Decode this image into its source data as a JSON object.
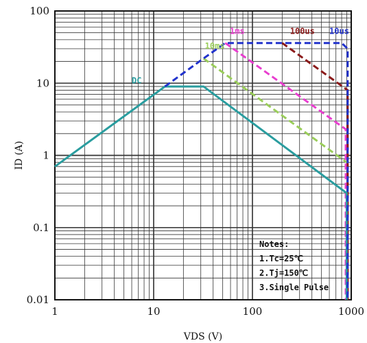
{
  "chart_data": {
    "type": "line",
    "title": "",
    "xlabel": "VDS (V)",
    "ylabel": "ID (A)",
    "xscale": "log",
    "yscale": "log",
    "xlim": [
      1,
      1000
    ],
    "ylim": [
      0.01,
      100
    ],
    "grid": true,
    "x_tick_labels": [
      "1",
      "10",
      "100",
      "1000"
    ],
    "y_tick_labels": [
      "0.01",
      "0.1",
      "1",
      "10",
      "100"
    ],
    "series": [
      {
        "name": "DC",
        "color": "#2a9d9f",
        "dashed": false,
        "points": [
          [
            1,
            0.7
          ],
          [
            13,
            9
          ],
          [
            32,
            9
          ],
          [
            900,
            0.3
          ],
          [
            900,
            0.01
          ]
        ]
      },
      {
        "name": "10ms",
        "color": "#9acd5a",
        "dashed": true,
        "points": [
          [
            32,
            22
          ],
          [
            900,
            0.8
          ]
        ]
      },
      {
        "name": "1ms",
        "color": "#e83ecf",
        "dashed": true,
        "points": [
          [
            53,
            36
          ],
          [
            880,
            2.3
          ],
          [
            880,
            0.01
          ]
        ]
      },
      {
        "name": "100us",
        "color": "#8b1a1a",
        "dashed": true,
        "points": [
          [
            200,
            36
          ],
          [
            920,
            8
          ],
          [
            920,
            0.01
          ]
        ]
      },
      {
        "name": "10us",
        "color": "#2233cc",
        "dashed": true,
        "points": [
          [
            13,
            9
          ],
          [
            32,
            22
          ],
          [
            53,
            36
          ],
          [
            800,
            36
          ],
          [
            920,
            30
          ],
          [
            920,
            0.01
          ]
        ]
      }
    ],
    "series_label_positions": {
      "DC": [
        6,
        10
      ],
      "10ms": [
        33,
        30
      ],
      "1ms": [
        59,
        48
      ],
      "100us": [
        240,
        48
      ],
      "10us": [
        600,
        48
      ]
    },
    "notes": {
      "title": "Notes:",
      "lines": [
        "1.Tc=25℃",
        "2.Tj=150℃",
        "3.Single Pulse"
      ]
    }
  }
}
